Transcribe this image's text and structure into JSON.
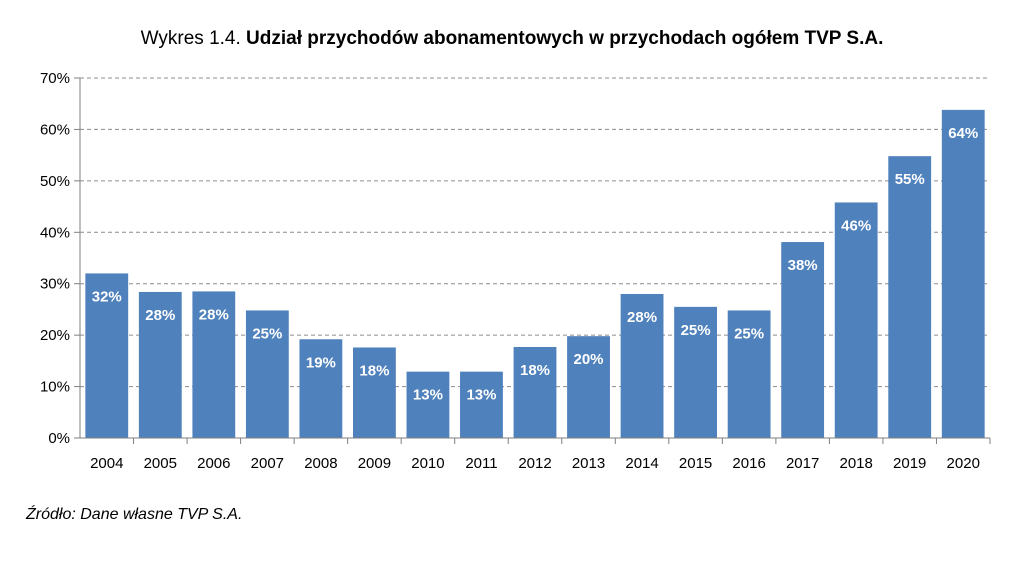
{
  "title_prefix": "Wykres 1.4.",
  "title_main": "Udział przychodów abonamentowych w przychodach ogółem TVP S.A.",
  "source": "Źródło: Dane własne TVP S.A.",
  "colors": {
    "bar": "#4F81BD",
    "grid": "#8C8C8C",
    "axis": "#7F7F7F",
    "label": "#FFFFFF"
  },
  "chart_data": {
    "type": "bar",
    "categories": [
      "2004",
      "2005",
      "2006",
      "2007",
      "2008",
      "2009",
      "2010",
      "2011",
      "2012",
      "2013",
      "2014",
      "2015",
      "2016",
      "2017",
      "2018",
      "2019",
      "2020"
    ],
    "values": [
      32,
      28.4,
      28.5,
      24.8,
      19.2,
      17.6,
      12.9,
      12.9,
      17.7,
      19.8,
      28,
      25.5,
      24.8,
      38.1,
      45.8,
      54.8,
      63.8
    ],
    "data_labels": [
      "32%",
      "28%",
      "28%",
      "25%",
      "19%",
      "18%",
      "13%",
      "13%",
      "18%",
      "20%",
      "28%",
      "25%",
      "25%",
      "38%",
      "46%",
      "55%",
      "64%"
    ],
    "ylim": [
      0,
      70
    ],
    "yticks": [
      0,
      10,
      20,
      30,
      40,
      50,
      60,
      70
    ],
    "ytick_labels": [
      "0%",
      "10%",
      "20%",
      "30%",
      "40%",
      "50%",
      "60%",
      "70%"
    ],
    "grid": true,
    "legend": false
  }
}
